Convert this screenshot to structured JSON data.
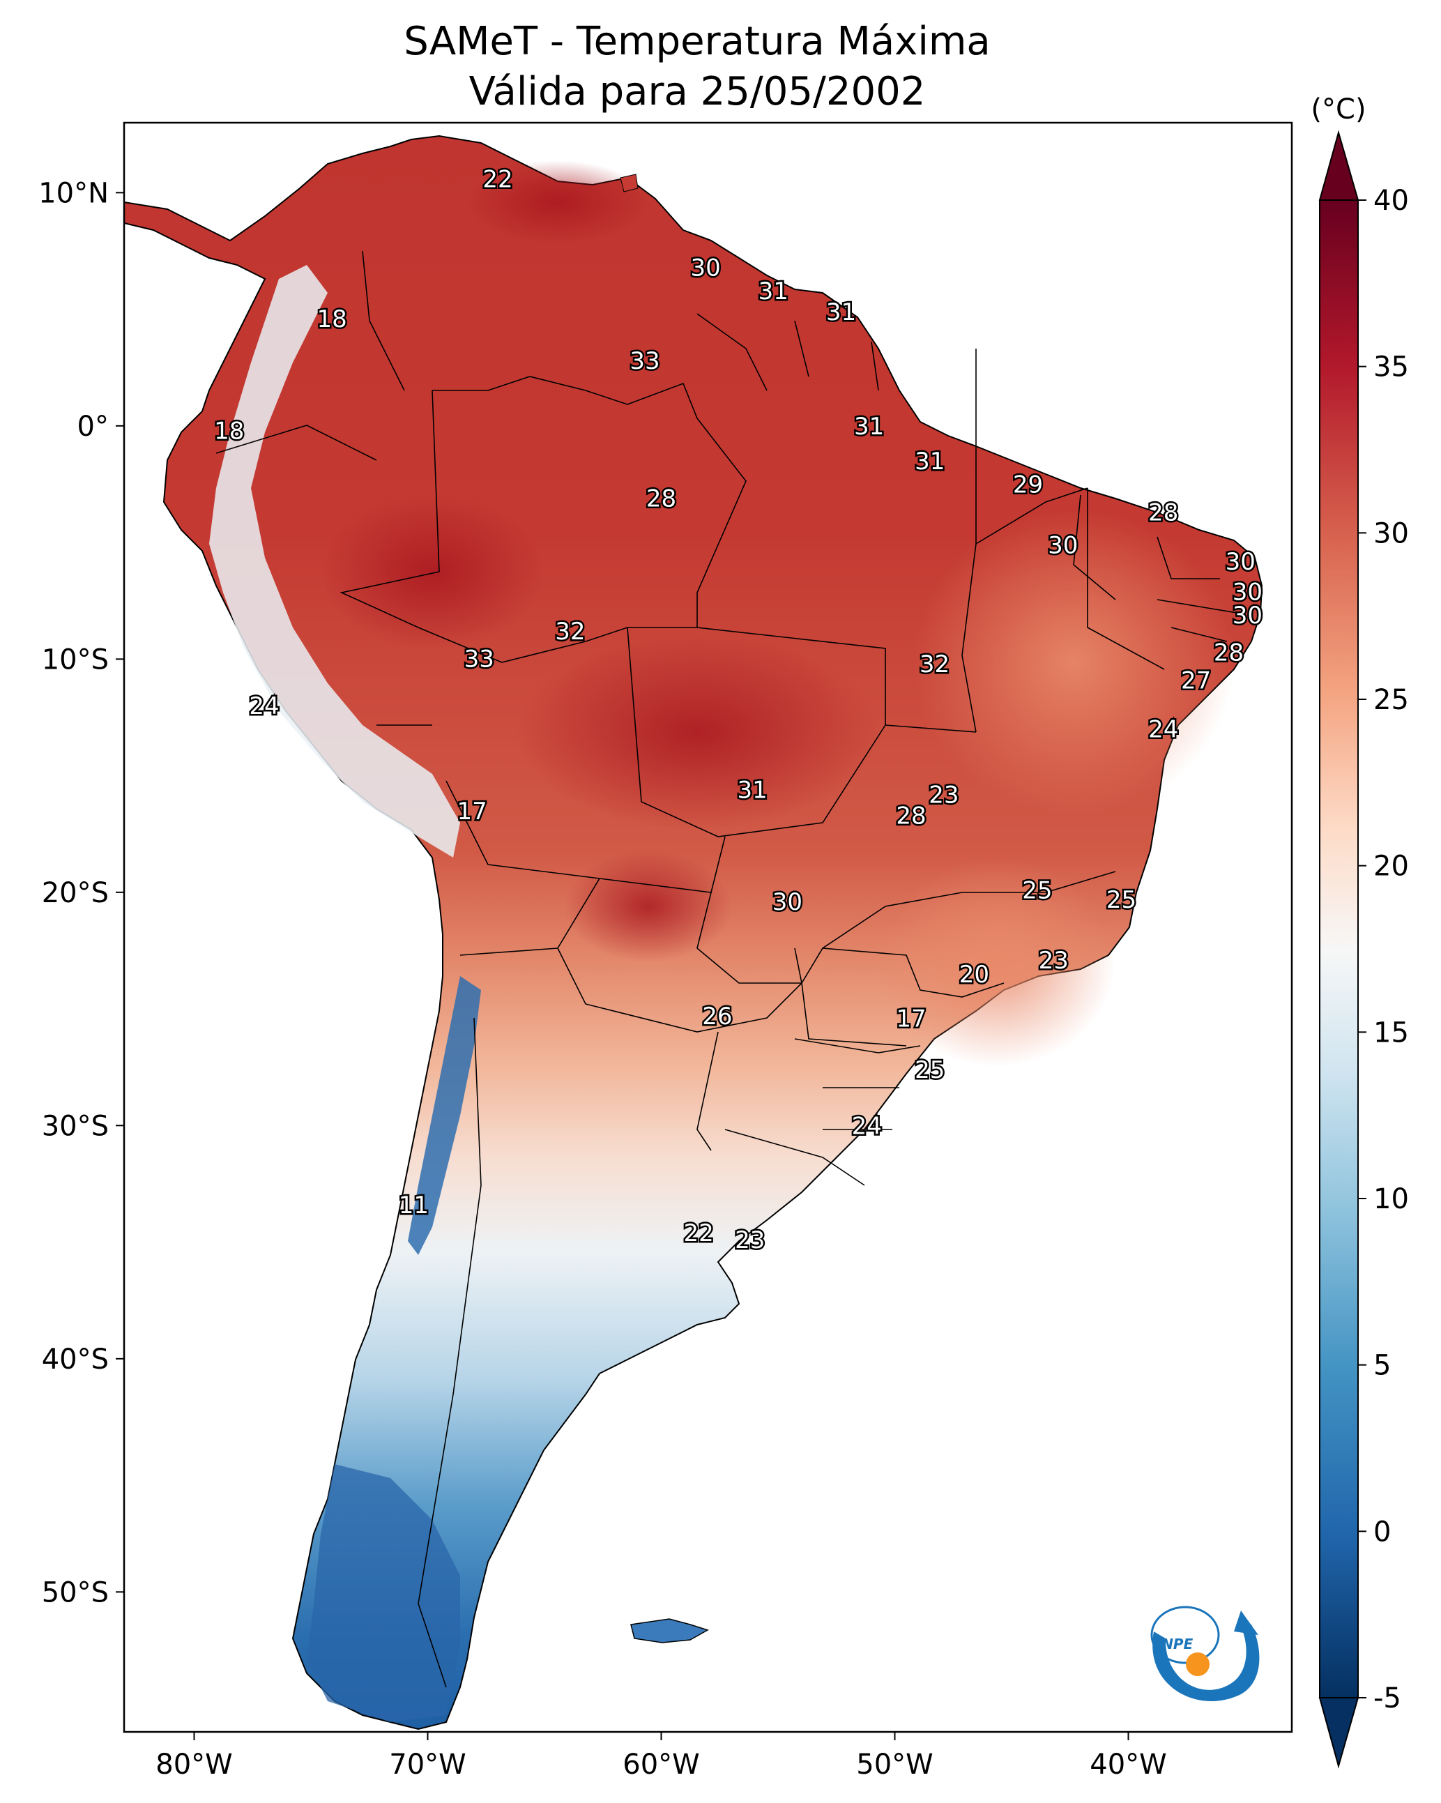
{
  "title": {
    "line1": "SAMeT - Temperatura Máxima",
    "line2": "Válida para 25/05/2002"
  },
  "colorbar": {
    "unit_label": "(°C)",
    "vmin": -5,
    "vmax": 40,
    "ticks": [
      "40",
      "35",
      "30",
      "25",
      "20",
      "15",
      "10",
      "5",
      "0",
      "-5"
    ],
    "tick_values": [
      40,
      35,
      30,
      25,
      20,
      15,
      10,
      5,
      0,
      -5
    ],
    "colormap": [
      "#053061",
      "#2166ac",
      "#4393c3",
      "#92c5de",
      "#d1e5f0",
      "#f7f7f7",
      "#fddbc7",
      "#f4a582",
      "#d6604d",
      "#b2182b",
      "#67001f"
    ]
  },
  "axes": {
    "lon_ticks": [
      "80°W",
      "70°W",
      "60°W",
      "50°W",
      "40°W"
    ],
    "lon_values": [
      -80,
      -70,
      -60,
      -50,
      -40
    ],
    "lat_ticks": [
      "10°N",
      "0°",
      "10°S",
      "20°S",
      "30°S",
      "40°S",
      "50°S"
    ],
    "lat_values": [
      10,
      0,
      -10,
      -20,
      -30,
      -40,
      -50
    ],
    "lon_range": [
      -83,
      -33
    ],
    "lat_range": [
      -56,
      13
    ]
  },
  "logo": {
    "text": "INPE",
    "colors": {
      "blue": "#1b75bb",
      "orange": "#f7941d"
    }
  },
  "city_labels": [
    {
      "text": "22",
      "lon": -67.0,
      "lat": 10.6
    },
    {
      "text": "18",
      "lon": -74.1,
      "lat": 4.6
    },
    {
      "text": "30",
      "lon": -58.1,
      "lat": 6.8
    },
    {
      "text": "31",
      "lon": -55.2,
      "lat": 5.8
    },
    {
      "text": "31",
      "lon": -52.3,
      "lat": 4.9
    },
    {
      "text": "33",
      "lon": -60.7,
      "lat": 2.8
    },
    {
      "text": "18",
      "lon": -78.5,
      "lat": -0.2
    },
    {
      "text": "31",
      "lon": -51.1,
      "lat": 0.0
    },
    {
      "text": "31",
      "lon": -48.5,
      "lat": -1.5
    },
    {
      "text": "29",
      "lon": -44.3,
      "lat": -2.5
    },
    {
      "text": "28",
      "lon": -60.0,
      "lat": -3.1
    },
    {
      "text": "28",
      "lon": -38.5,
      "lat": -3.7
    },
    {
      "text": "30",
      "lon": -42.8,
      "lat": -5.1
    },
    {
      "text": "30",
      "lon": -35.2,
      "lat": -5.8
    },
    {
      "text": "30",
      "lon": -34.9,
      "lat": -7.1
    },
    {
      "text": "30",
      "lon": -34.9,
      "lat": -8.1
    },
    {
      "text": "32",
      "lon": -63.9,
      "lat": -8.8
    },
    {
      "text": "33",
      "lon": -67.8,
      "lat": -9.97
    },
    {
      "text": "32",
      "lon": -48.3,
      "lat": -10.2
    },
    {
      "text": "28",
      "lon": -35.7,
      "lat": -9.7
    },
    {
      "text": "27",
      "lon": -37.1,
      "lat": -10.9
    },
    {
      "text": "24",
      "lon": -77.0,
      "lat": -12.0
    },
    {
      "text": "24",
      "lon": -38.5,
      "lat": -13.0
    },
    {
      "text": "23",
      "lon": -47.9,
      "lat": -15.8
    },
    {
      "text": "31",
      "lon": -56.1,
      "lat": -15.6
    },
    {
      "text": "28",
      "lon": -49.3,
      "lat": -16.7
    },
    {
      "text": "17",
      "lon": -68.1,
      "lat": -16.5
    },
    {
      "text": "25",
      "lon": -43.9,
      "lat": -19.9
    },
    {
      "text": "25",
      "lon": -40.3,
      "lat": -20.3
    },
    {
      "text": "30",
      "lon": -54.6,
      "lat": -20.4
    },
    {
      "text": "23",
      "lon": -43.2,
      "lat": -22.9
    },
    {
      "text": "20",
      "lon": -46.6,
      "lat": -23.5
    },
    {
      "text": "26",
      "lon": -57.6,
      "lat": -25.3
    },
    {
      "text": "17",
      "lon": -49.3,
      "lat": -25.4
    },
    {
      "text": "25",
      "lon": -48.5,
      "lat": -27.6
    },
    {
      "text": "24",
      "lon": -51.2,
      "lat": -30.0
    },
    {
      "text": "11",
      "lon": -70.6,
      "lat": -33.4
    },
    {
      "text": "22",
      "lon": -58.4,
      "lat": -34.6
    },
    {
      "text": "23",
      "lon": -56.2,
      "lat": -34.9
    }
  ]
}
